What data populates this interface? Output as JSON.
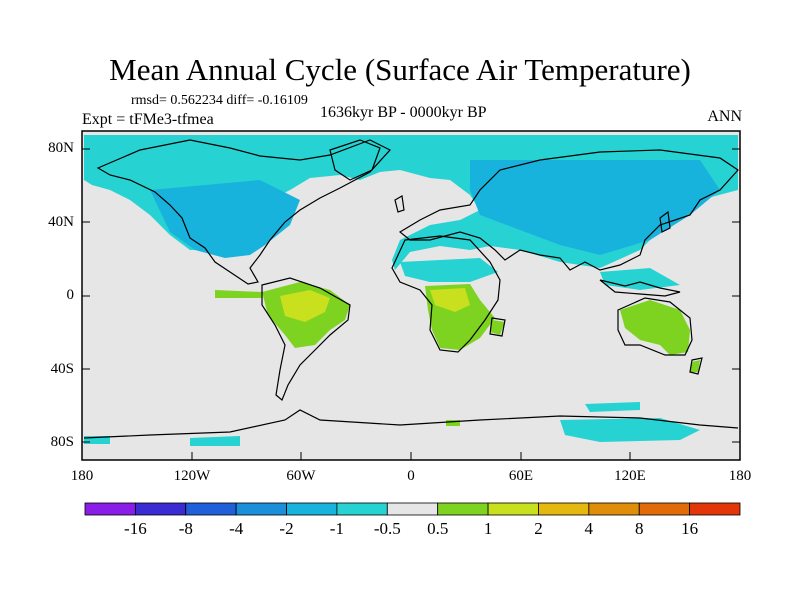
{
  "title": "Mean Annual Cycle (Surface Air Temperature)",
  "stats": "rmsd= 0.562234 diff= -0.16109",
  "expt": "Expt = tFMe3-tfmea",
  "period": "1636kyr BP - 0000kyr BP",
  "season": "ANN",
  "lat_labels": [
    "80N",
    "40N",
    "0",
    "40S",
    "80S"
  ],
  "lon_labels": [
    "180",
    "120W",
    "60W",
    "0",
    "60E",
    "120E",
    "180"
  ],
  "colorbar": {
    "labels": [
      "-16",
      "-8",
      "-4",
      "-2",
      "-1",
      "-0.5",
      "0.5",
      "1",
      "2",
      "4",
      "8",
      "16"
    ],
    "colors": [
      "#8a1ee8",
      "#3a2bd2",
      "#1f5fd9",
      "#1c8fdb",
      "#18b3dd",
      "#26d3d2",
      "#e6e6e6",
      "#7ed321",
      "#c8e01e",
      "#e4b80e",
      "#e08e0a",
      "#e36a08",
      "#e33608"
    ]
  }
}
